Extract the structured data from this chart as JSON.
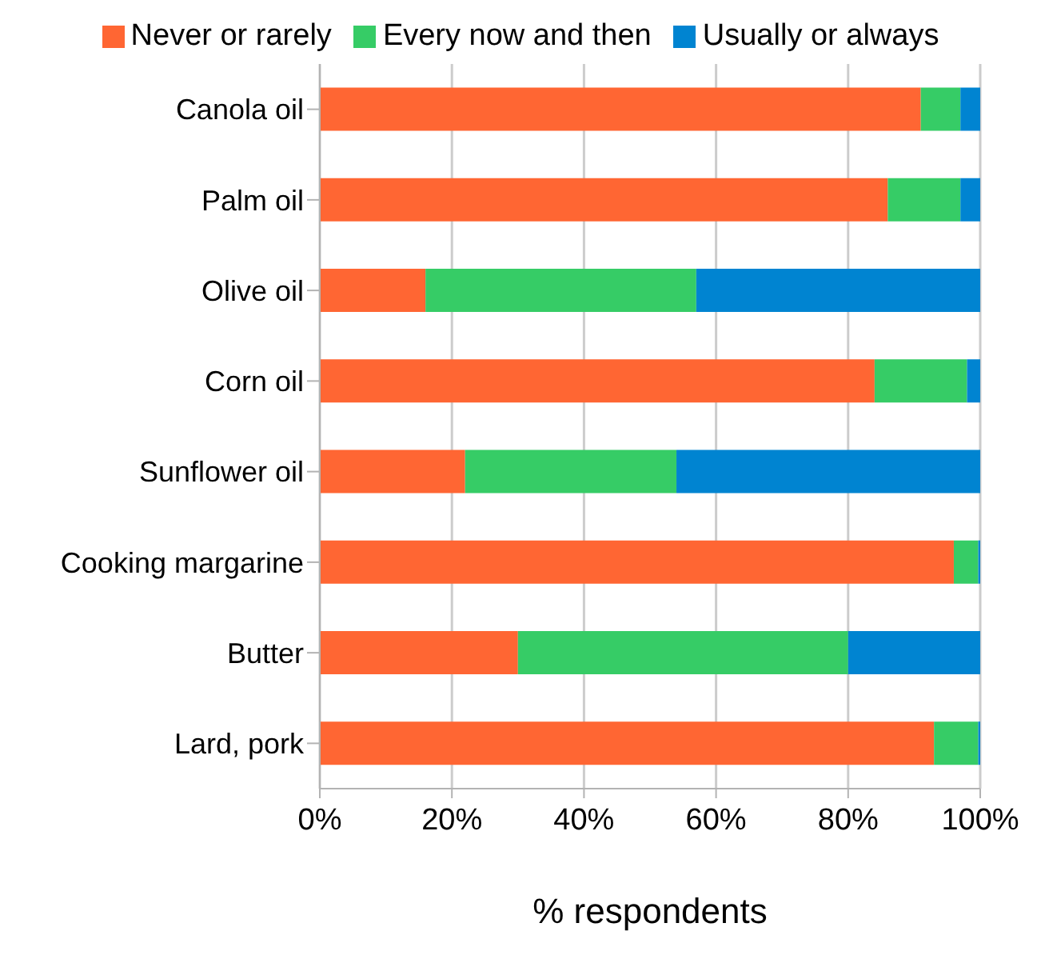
{
  "chart_data": {
    "type": "bar",
    "orientation": "horizontal",
    "stacked": true,
    "xlabel": "% respondents",
    "categories": [
      "Canola oil",
      "Palm oil",
      "Olive oil",
      "Corn oil",
      "Sunflower oil",
      "Cooking margarine",
      "Butter",
      "Lard, pork"
    ],
    "series": [
      {
        "name": "Never or rarely",
        "color": "#ff6633",
        "values": [
          91,
          86,
          16,
          84,
          22,
          96,
          30,
          93
        ]
      },
      {
        "name": "Every now and then",
        "color": "#36cc66",
        "values": [
          6,
          11,
          41,
          14,
          32,
          3.7,
          50,
          6.7
        ]
      },
      {
        "name": "Usually or always",
        "color": "#0084d1",
        "values": [
          3,
          3,
          43,
          2,
          46,
          0.3,
          20,
          0.3
        ]
      }
    ],
    "xlim": [
      0,
      100
    ],
    "xticks": [
      {
        "value": 0,
        "label": "0%"
      },
      {
        "value": 20,
        "label": "20%"
      },
      {
        "value": 40,
        "label": "40%"
      },
      {
        "value": 60,
        "label": "60%"
      },
      {
        "value": 80,
        "label": "80%"
      },
      {
        "value": 100,
        "label": "100%"
      }
    ],
    "grid": "x",
    "legend": "top"
  }
}
